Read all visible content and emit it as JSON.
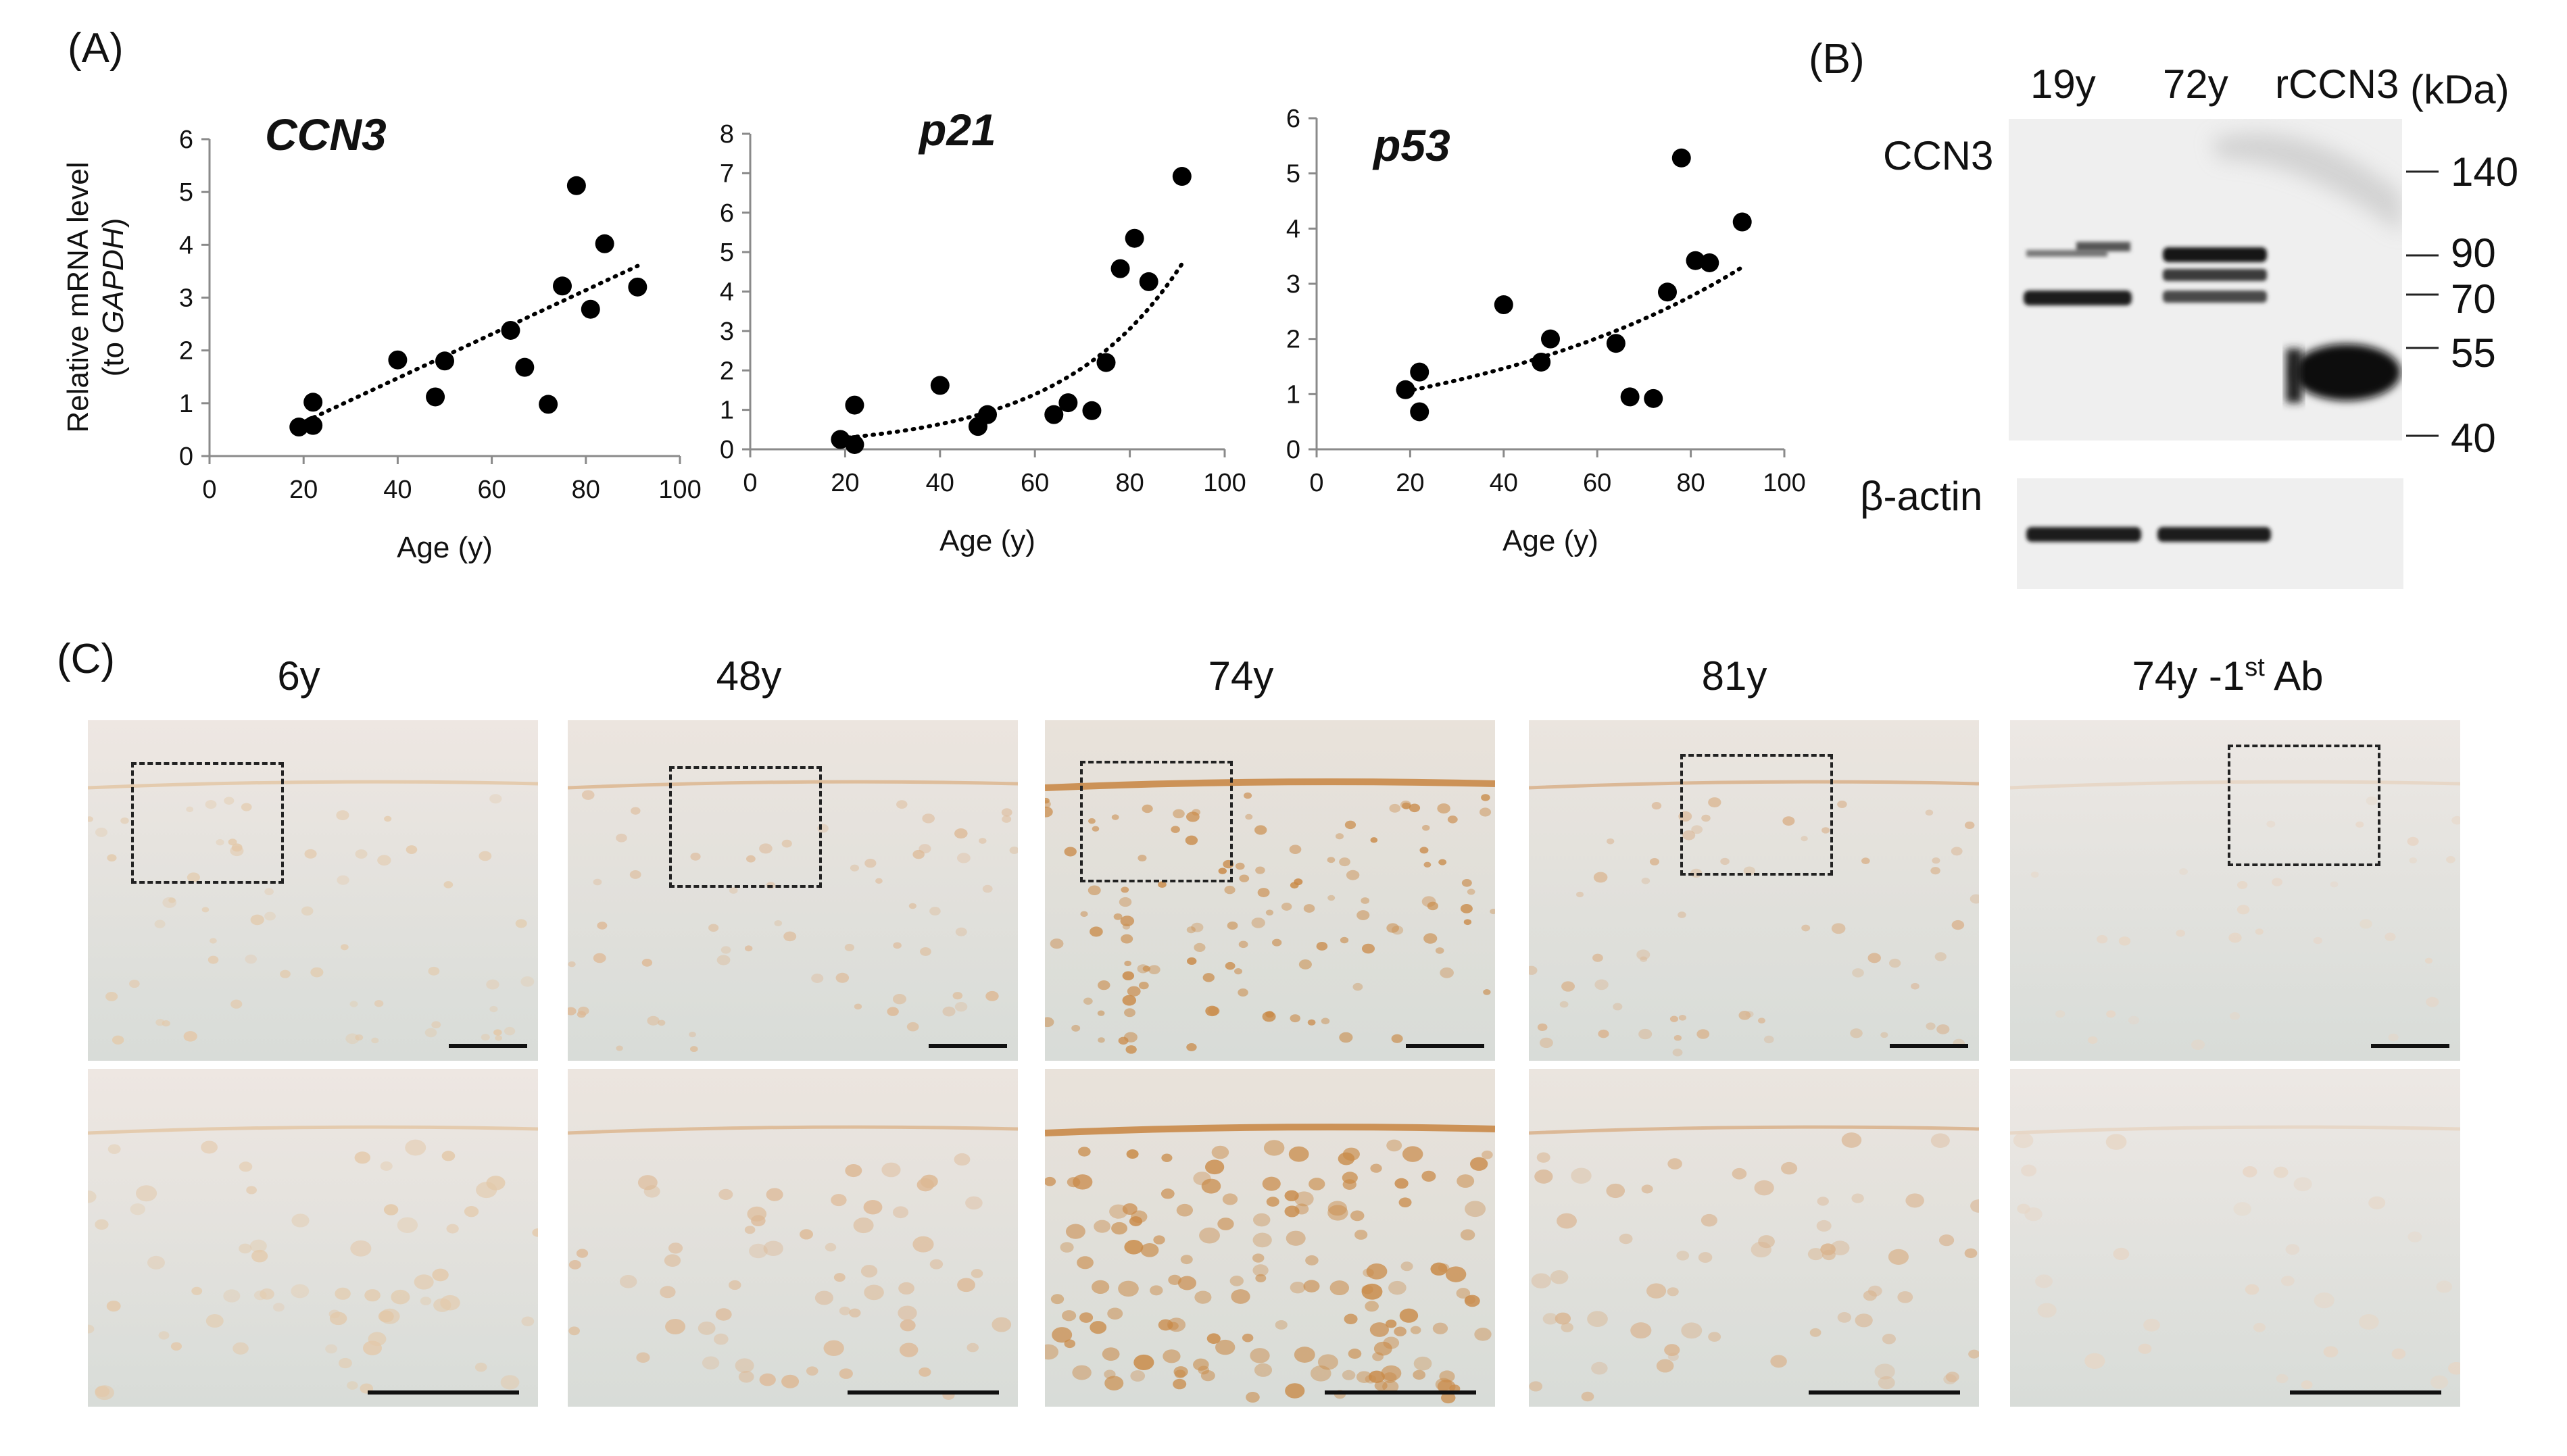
{
  "panel_labels": {
    "a": "(A)",
    "b": "(B)",
    "c": "(C)"
  },
  "shared_axis": {
    "xlabel": "Age (y)",
    "ylabel_line1": "Relative mRNA level",
    "ylabel_line2_prefix": "(to ",
    "ylabel_line2_italic": "GAPDH",
    "ylabel_line2_suffix": ")"
  },
  "chart_data": [
    {
      "type": "scatter",
      "title": "CCN3",
      "xlim": [
        0,
        100
      ],
      "xticks": [
        0,
        20,
        40,
        60,
        80,
        100
      ],
      "ylim": [
        0,
        6
      ],
      "yticks": [
        0,
        1,
        2,
        3,
        4,
        5,
        6
      ],
      "trendline": "linear, dotted",
      "trend": {
        "kind": "linear",
        "x0": 19,
        "y0": 0.6,
        "x1": 91,
        "y1": 3.6
      },
      "points": [
        {
          "x": 19,
          "y": 0.55
        },
        {
          "x": 22,
          "y": 0.58
        },
        {
          "x": 22,
          "y": 1.02
        },
        {
          "x": 40,
          "y": 1.82
        },
        {
          "x": 48,
          "y": 1.12
        },
        {
          "x": 50,
          "y": 1.8
        },
        {
          "x": 64,
          "y": 2.38
        },
        {
          "x": 67,
          "y": 1.68
        },
        {
          "x": 72,
          "y": 0.98
        },
        {
          "x": 75,
          "y": 3.22
        },
        {
          "x": 78,
          "y": 5.12
        },
        {
          "x": 81,
          "y": 2.78
        },
        {
          "x": 84,
          "y": 4.02
        },
        {
          "x": 91,
          "y": 3.2
        }
      ]
    },
    {
      "type": "scatter",
      "title": "p21",
      "xlim": [
        0,
        100
      ],
      "xticks": [
        0,
        20,
        40,
        60,
        80,
        100
      ],
      "ylim": [
        0,
        8
      ],
      "yticks": [
        0,
        1,
        2,
        3,
        4,
        5,
        6,
        7,
        8
      ],
      "trendline": "exponential, dotted",
      "trend": {
        "kind": "exponential",
        "x0": 19,
        "y0": 0.28,
        "x1": 91,
        "y1": 4.7
      },
      "points": [
        {
          "x": 19,
          "y": 0.25
        },
        {
          "x": 22,
          "y": 0.12
        },
        {
          "x": 22,
          "y": 1.12
        },
        {
          "x": 40,
          "y": 1.62
        },
        {
          "x": 48,
          "y": 0.58
        },
        {
          "x": 50,
          "y": 0.88
        },
        {
          "x": 64,
          "y": 0.88
        },
        {
          "x": 67,
          "y": 1.18
        },
        {
          "x": 72,
          "y": 0.98
        },
        {
          "x": 75,
          "y": 2.2
        },
        {
          "x": 78,
          "y": 4.58
        },
        {
          "x": 81,
          "y": 5.35
        },
        {
          "x": 84,
          "y": 4.25
        },
        {
          "x": 91,
          "y": 6.92
        }
      ]
    },
    {
      "type": "scatter",
      "title": "p53",
      "xlim": [
        0,
        100
      ],
      "xticks": [
        0,
        20,
        40,
        60,
        80,
        100
      ],
      "ylim": [
        0,
        6
      ],
      "yticks": [
        0,
        1,
        2,
        3,
        4,
        5,
        6
      ],
      "trendline": "exponential, dotted",
      "trend": {
        "kind": "exponential",
        "x0": 19,
        "y0": 1.05,
        "x1": 91,
        "y1": 3.3
      },
      "points": [
        {
          "x": 19,
          "y": 1.08
        },
        {
          "x": 22,
          "y": 0.68
        },
        {
          "x": 22,
          "y": 1.4
        },
        {
          "x": 40,
          "y": 2.62
        },
        {
          "x": 48,
          "y": 1.58
        },
        {
          "x": 50,
          "y": 2.0
        },
        {
          "x": 64,
          "y": 1.92
        },
        {
          "x": 67,
          "y": 0.95
        },
        {
          "x": 72,
          "y": 0.92
        },
        {
          "x": 75,
          "y": 2.85
        },
        {
          "x": 78,
          "y": 5.28
        },
        {
          "x": 81,
          "y": 3.42
        },
        {
          "x": 84,
          "y": 3.38
        },
        {
          "x": 91,
          "y": 4.12
        }
      ]
    }
  ],
  "western_blot": {
    "lanes": [
      "19y",
      "72y",
      "rCCN3"
    ],
    "unit": "(kDa)",
    "protein_top": "CCN3",
    "protein_bottom": "β-actin",
    "markers": [
      "140",
      "90",
      "70",
      "55",
      "40"
    ]
  },
  "histology": {
    "columns": [
      {
        "label": "6y",
        "tint": "#eee7e2",
        "stain": "#e3c8a8"
      },
      {
        "label": "48y",
        "tint": "#ece5df",
        "stain": "#ddb894"
      },
      {
        "label": "74y",
        "tint": "#e9e2da",
        "stain": "#c98a48"
      },
      {
        "label": "81y",
        "tint": "#ebe5df",
        "stain": "#d9b38e"
      },
      {
        "label": "74y -1",
        "label_sup": "st",
        "label_tail": " Ab",
        "tint": "#ede8e4",
        "stain": "#e7d5c4"
      }
    ]
  },
  "colors": {
    "marker": "#000000",
    "axis": "#8a8a8a",
    "text": "#111111"
  }
}
